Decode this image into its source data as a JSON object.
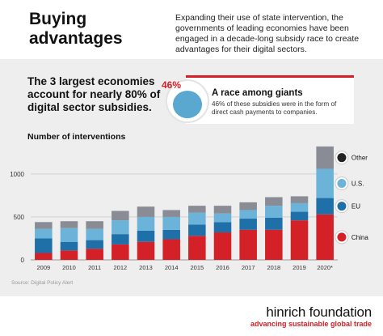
{
  "header": {
    "title": "Buying advantages",
    "intro": "Expanding their use of state intervention, the governments of leading economies have been engaged in a decade-long subsidy race to create advantages for their digital sectors."
  },
  "headline": "The 3 largest economies account for nearly 80% of digital sector subsidies.",
  "callout": {
    "percent": "46%",
    "title": "A race among giants",
    "text": "46% of these subsidies were in the form of direct cash payments to companies."
  },
  "source": "Source: Digital Policy Alert",
  "brand": {
    "name": "hinrich foundation",
    "tagline": "advancing sustainable global trade"
  },
  "colors": {
    "china": "#d42027",
    "eu": "#1f6fa9",
    "us": "#6cb3d9",
    "other": "#8a8c95"
  },
  "chart_data": {
    "type": "bar",
    "stacked": true,
    "title": "Number of interventions",
    "xlabel": "",
    "ylabel": "",
    "categories": [
      "2009",
      "2010",
      "2011",
      "2012",
      "2013",
      "2014",
      "2015",
      "2016",
      "2017",
      "2018",
      "2019",
      "2020*"
    ],
    "ylim": [
      0,
      1300
    ],
    "yticks": [
      0,
      500,
      1000
    ],
    "grid": true,
    "legend": "right",
    "series": [
      {
        "name": "China",
        "color": "#d42027",
        "values": [
          80,
          110,
          130,
          180,
          210,
          240,
          280,
          320,
          350,
          350,
          460,
          530
        ]
      },
      {
        "name": "EU",
        "color": "#1f6fa9",
        "values": [
          170,
          100,
          100,
          120,
          130,
          110,
          130,
          120,
          130,
          140,
          100,
          190
        ]
      },
      {
        "name": "U.S.",
        "color": "#6cb3d9",
        "values": [
          110,
          160,
          130,
          160,
          160,
          150,
          140,
          100,
          100,
          140,
          100,
          340
        ]
      },
      {
        "name": "Other",
        "color": "#8a8c95",
        "values": [
          80,
          80,
          90,
          110,
          120,
          80,
          80,
          90,
          90,
          100,
          80,
          260
        ]
      }
    ]
  }
}
